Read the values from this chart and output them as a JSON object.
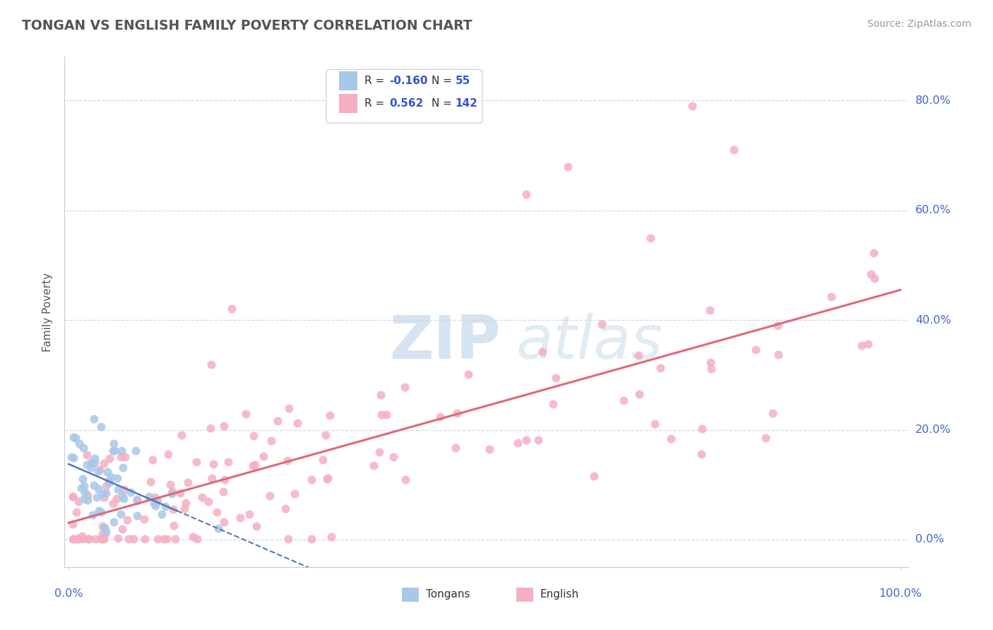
{
  "title": "TONGAN VS ENGLISH FAMILY POVERTY CORRELATION CHART",
  "source_text": "Source: ZipAtlas.com",
  "ylabel": "Family Poverty",
  "xlim": [
    -0.005,
    1.01
  ],
  "ylim": [
    -0.05,
    0.88
  ],
  "yticks": [
    0.0,
    0.2,
    0.4,
    0.6,
    0.8
  ],
  "legend_r_tongan": "-0.160",
  "legend_n_tongan": "55",
  "legend_r_english": "0.562",
  "legend_n_english": "142",
  "tongan_color": "#a8c8e8",
  "english_color": "#f5afc0",
  "tongan_line_color": "#5577bb",
  "english_line_color": "#e06878",
  "background_color": "#ffffff",
  "grid_color": "#d0d8e8",
  "title_color": "#555555",
  "source_color": "#999999",
  "axis_label_color": "#4466cc",
  "legend_text_color": "#333333",
  "legend_value_color": "#3355cc"
}
